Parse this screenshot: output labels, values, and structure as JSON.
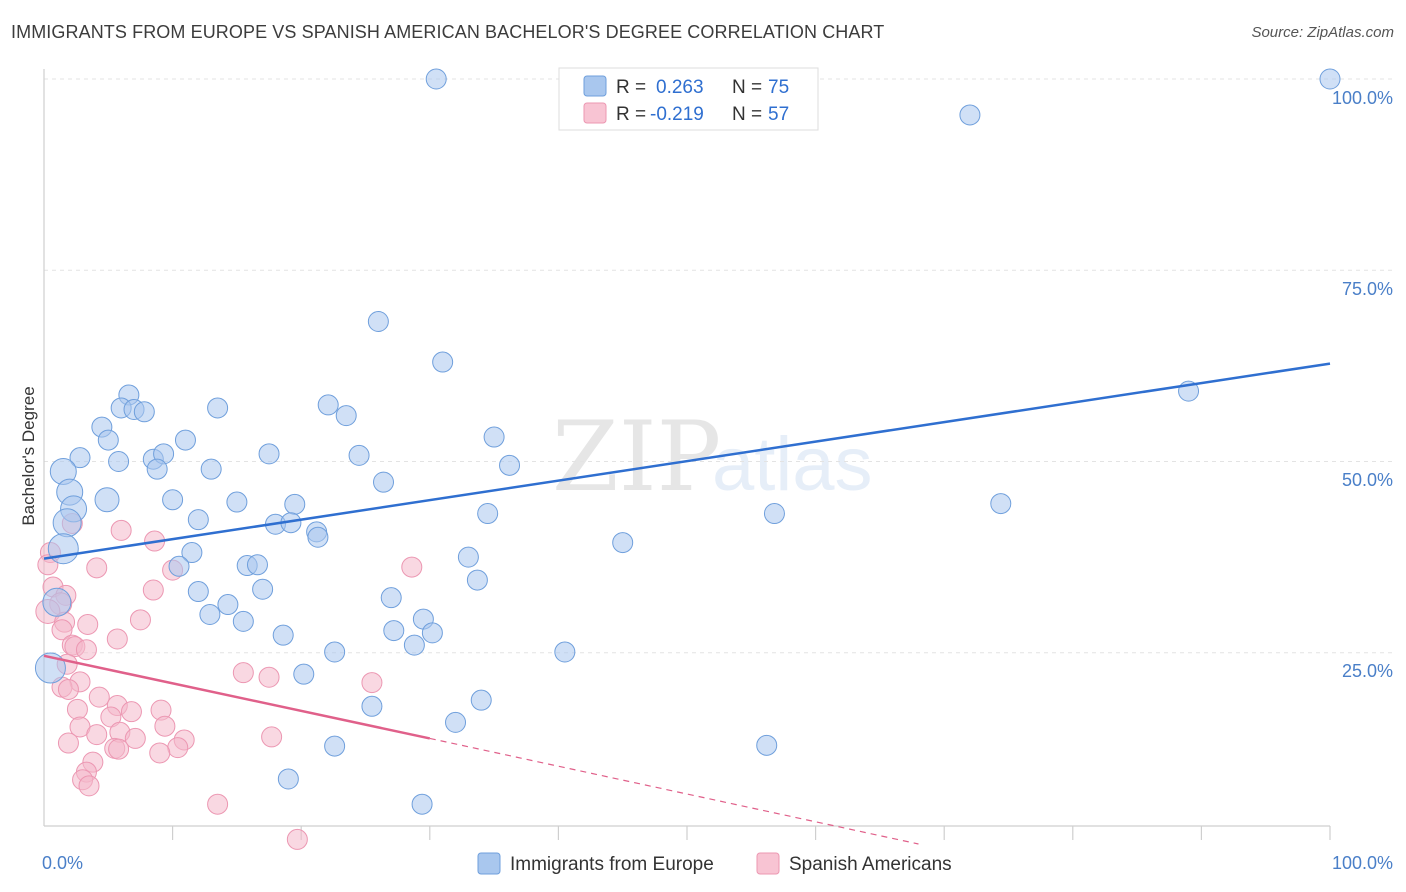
{
  "title": "IMMIGRANTS FROM EUROPE VS SPANISH AMERICAN BACHELOR'S DEGREE CORRELATION CHART",
  "source": "Source: ZipAtlas.com",
  "watermark": {
    "part1": "ZIP",
    "part2": "atlas"
  },
  "legend": {
    "series1": {
      "r_label": "R =",
      "r_value": "0.263",
      "n_label": "N =",
      "n_value": "75"
    },
    "series2": {
      "r_label": "R =",
      "r_value": "-0.219",
      "n_label": "N =",
      "n_value": "57"
    }
  },
  "bottom_legend": {
    "series1": "Immigrants from Europe",
    "series2": "Spanish Americans"
  },
  "chart_data": {
    "type": "scatter",
    "title": "IMMIGRANTS FROM EUROPE VS SPANISH AMERICAN BACHELOR'S DEGREE CORRELATION CHART",
    "xlabel": "",
    "ylabel": "Bachelor's Degree",
    "xlim": [
      0,
      100
    ],
    "ylim": [
      0,
      100
    ],
    "x_tick_labels": [
      "0.0%",
      "100.0%"
    ],
    "y_tick_labels": [
      "25.0%",
      "50.0%",
      "75.0%",
      "100.0%"
    ],
    "y_tick_values": [
      25,
      50,
      75,
      100
    ],
    "colors": {
      "series1": "#a9c7ee",
      "series1_line": "#2f6fd0",
      "series2": "#f4b8ca",
      "series2_line": "#e0608a"
    },
    "series": [
      {
        "name": "Immigrants from Europe",
        "R": 0.263,
        "N": 75,
        "trend": {
          "x": [
            0,
            100
          ],
          "y": [
            37.3,
            62.8
          ]
        },
        "points": [
          [
            30.5,
            100,
            10
          ],
          [
            100,
            100,
            10
          ],
          [
            72,
            95.3,
            10
          ],
          [
            26,
            68.3,
            10
          ],
          [
            31,
            63,
            10
          ],
          [
            89,
            59.2,
            10
          ],
          [
            6.6,
            58.7,
            10
          ],
          [
            6,
            57,
            10
          ],
          [
            7,
            56.8,
            10
          ],
          [
            7.8,
            56.5,
            10
          ],
          [
            13.5,
            57,
            10
          ],
          [
            22.1,
            57.4,
            10
          ],
          [
            23.5,
            56,
            10
          ],
          [
            4.5,
            54.5,
            10
          ],
          [
            5,
            52.8,
            10
          ],
          [
            11,
            52.8,
            10
          ],
          [
            35,
            53.2,
            10
          ],
          [
            2.8,
            50.5,
            10
          ],
          [
            8.5,
            50.3,
            10
          ],
          [
            9.3,
            51,
            10
          ],
          [
            17.5,
            51,
            10
          ],
          [
            24.5,
            50.8,
            10
          ],
          [
            5.8,
            50,
            10
          ],
          [
            13,
            49,
            10
          ],
          [
            8.8,
            49,
            10
          ],
          [
            36.2,
            49.5,
            10
          ],
          [
            1.5,
            48.7,
            13
          ],
          [
            26.4,
            47.3,
            10
          ],
          [
            2,
            46,
            13
          ],
          [
            4.9,
            45,
            12
          ],
          [
            10,
            45,
            10
          ],
          [
            15,
            44.7,
            10
          ],
          [
            19.5,
            44.4,
            10
          ],
          [
            74.4,
            44.5,
            10
          ],
          [
            2.3,
            43.8,
            13
          ],
          [
            34.5,
            43.2,
            10
          ],
          [
            56.8,
            43.2,
            10
          ],
          [
            12,
            42.4,
            10
          ],
          [
            18,
            41.8,
            10
          ],
          [
            19.2,
            42,
            10
          ],
          [
            1.8,
            42,
            14
          ],
          [
            21.2,
            40.8,
            10
          ],
          [
            21.3,
            40.1,
            10
          ],
          [
            45,
            39.4,
            10
          ],
          [
            1.5,
            38.6,
            15
          ],
          [
            11.5,
            38.1,
            10
          ],
          [
            33,
            37.5,
            10
          ],
          [
            10.5,
            36.3,
            10
          ],
          [
            15.8,
            36.4,
            10
          ],
          [
            16.6,
            36.5,
            10
          ],
          [
            33.7,
            34.5,
            10
          ],
          [
            17,
            33.3,
            10
          ],
          [
            12,
            33,
            10
          ],
          [
            27,
            32.2,
            10
          ],
          [
            14.3,
            31.3,
            10
          ],
          [
            1,
            31.6,
            14
          ],
          [
            12.9,
            30,
            10
          ],
          [
            29.5,
            29.4,
            10
          ],
          [
            15.5,
            29.1,
            10
          ],
          [
            27.2,
            27.9,
            10
          ],
          [
            30.2,
            27.6,
            10
          ],
          [
            18.6,
            27.3,
            10
          ],
          [
            28.8,
            26,
            10
          ],
          [
            40.5,
            25.1,
            10
          ],
          [
            22.6,
            25.1,
            10
          ],
          [
            20.2,
            22.2,
            10
          ],
          [
            0.5,
            23,
            15
          ],
          [
            34,
            18.8,
            10
          ],
          [
            25.5,
            18,
            10
          ],
          [
            32,
            15.9,
            10
          ],
          [
            56.2,
            12.9,
            10
          ],
          [
            22.6,
            12.8,
            10
          ],
          [
            19,
            8.5,
            10
          ],
          [
            29.4,
            5.2,
            10
          ]
        ]
      },
      {
        "name": "Spanish Americans",
        "R": -0.219,
        "N": 57,
        "trend": {
          "x": [
            0,
            30
          ],
          "y": [
            24.6,
            13.8
          ]
        },
        "trend_dashed": {
          "x": [
            30,
            68
          ],
          "y": [
            13.8,
            0
          ]
        },
        "points": [
          [
            2.2,
            41.9,
            10
          ],
          [
            6,
            41,
            10
          ],
          [
            8.6,
            39.6,
            10
          ],
          [
            0.5,
            38.1,
            10
          ],
          [
            0.3,
            36.5,
            10
          ],
          [
            4.1,
            36.1,
            10
          ],
          [
            10,
            35.8,
            10
          ],
          [
            28.6,
            36.2,
            10
          ],
          [
            0.7,
            33.6,
            10
          ],
          [
            8.5,
            33.2,
            10
          ],
          [
            1.7,
            32.5,
            10
          ],
          [
            1.3,
            31.4,
            11
          ],
          [
            0.3,
            30.4,
            12
          ],
          [
            7.5,
            29.3,
            10
          ],
          [
            1.6,
            29,
            10
          ],
          [
            3.4,
            28.7,
            10
          ],
          [
            1.4,
            28,
            10
          ],
          [
            5.7,
            26.8,
            10
          ],
          [
            2.2,
            26,
            10
          ],
          [
            2.4,
            25.8,
            10
          ],
          [
            3.3,
            25.4,
            10
          ],
          [
            1.8,
            23.5,
            10
          ],
          [
            15.5,
            22.4,
            10
          ],
          [
            17.5,
            21.8,
            10
          ],
          [
            2.8,
            21.2,
            10
          ],
          [
            1.4,
            20.5,
            10
          ],
          [
            1.9,
            20.2,
            10
          ],
          [
            25.5,
            21.1,
            10
          ],
          [
            4.3,
            19.2,
            10
          ],
          [
            5.7,
            18.1,
            10
          ],
          [
            2.6,
            17.6,
            10
          ],
          [
            6.8,
            17.3,
            10
          ],
          [
            9.1,
            17.5,
            10
          ],
          [
            5.2,
            16.6,
            10
          ],
          [
            2.8,
            15.3,
            10
          ],
          [
            9.4,
            15.4,
            10
          ],
          [
            5.9,
            14.6,
            10
          ],
          [
            4.1,
            14.3,
            10
          ],
          [
            17.7,
            14,
            10
          ],
          [
            7.1,
            13.8,
            10
          ],
          [
            10.9,
            13.6,
            10
          ],
          [
            1.9,
            13.2,
            10
          ],
          [
            10.4,
            12.6,
            10
          ],
          [
            5.5,
            12.5,
            10
          ],
          [
            5.8,
            12.4,
            10
          ],
          [
            9,
            11.9,
            10
          ],
          [
            3.8,
            10.7,
            10
          ],
          [
            3.3,
            9.4,
            10
          ],
          [
            3,
            8.4,
            10
          ],
          [
            3.5,
            7.6,
            10
          ],
          [
            13.5,
            5.2,
            10
          ],
          [
            19.7,
            0.6,
            10
          ]
        ]
      }
    ]
  }
}
